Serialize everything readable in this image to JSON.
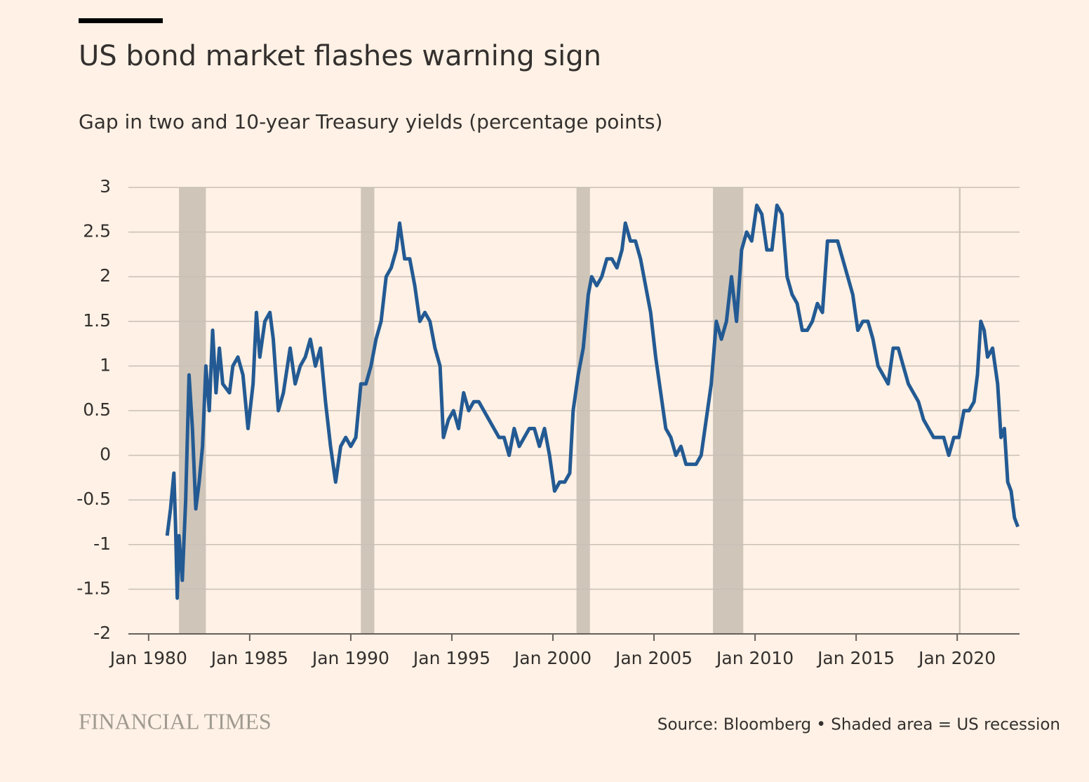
{
  "chart_data": {
    "type": "line",
    "title": "US bond market flashes warning sign",
    "subtitle": "Gap in two and 10-year Treasury yields (percentage points)",
    "brand": "FINANCIAL TIMES",
    "source": "Source: Bloomberg • Shaded area = US recession",
    "xlim": [
      "1979-01",
      "2023-02"
    ],
    "ylim": [
      -2,
      3
    ],
    "yticks": [
      -2,
      -1.5,
      -1,
      -0.5,
      0,
      0.5,
      1,
      1.5,
      2,
      2.5,
      3
    ],
    "xticks": [
      {
        "value": "1980-01",
        "label": "Jan 1980"
      },
      {
        "value": "1985-01",
        "label": "Jan 1985"
      },
      {
        "value": "1990-01",
        "label": "Jan 1990"
      },
      {
        "value": "1995-01",
        "label": "Jan 1995"
      },
      {
        "value": "2000-01",
        "label": "Jan 2000"
      },
      {
        "value": "2005-01",
        "label": "Jan 2005"
      },
      {
        "value": "2010-01",
        "label": "Jan 2010"
      },
      {
        "value": "2015-01",
        "label": "Jan 2015"
      },
      {
        "value": "2020-01",
        "label": "Jan 2020"
      }
    ],
    "grid": true,
    "recession_color": "#cfc5b9",
    "recessions": [
      {
        "start": "1981-07",
        "end": "1982-11"
      },
      {
        "start": "1990-07",
        "end": "1991-03"
      },
      {
        "start": "2001-03",
        "end": "2001-11"
      },
      {
        "start": "2007-12",
        "end": "2009-06"
      },
      {
        "start": "2020-02",
        "end": "2020-03"
      }
    ],
    "series": [
      {
        "color": "#235a93",
        "x": [
          "1980-12",
          "1981-02",
          "1981-04",
          "1981-05",
          "1981-06",
          "1981-07",
          "1981-09",
          "1981-11",
          "1982-01",
          "1982-03",
          "1982-05",
          "1982-07",
          "1982-09",
          "1982-11",
          "1983-01",
          "1983-03",
          "1983-05",
          "1983-07",
          "1983-09",
          "1984-01",
          "1984-03",
          "1984-06",
          "1984-09",
          "1984-12",
          "1985-03",
          "1985-05",
          "1985-07",
          "1985-10",
          "1986-01",
          "1986-03",
          "1986-06",
          "1986-09",
          "1987-01",
          "1987-04",
          "1987-07",
          "1987-10",
          "1988-01",
          "1988-04",
          "1988-07",
          "1988-10",
          "1989-01",
          "1989-04",
          "1989-07",
          "1989-10",
          "1990-01",
          "1990-04",
          "1990-07",
          "1990-10",
          "1991-01",
          "1991-04",
          "1991-07",
          "1991-10",
          "1992-01",
          "1992-04",
          "1992-06",
          "1992-09",
          "1992-12",
          "1993-03",
          "1993-06",
          "1993-09",
          "1993-12",
          "1994-03",
          "1994-06",
          "1994-08",
          "1994-11",
          "1995-02",
          "1995-05",
          "1995-08",
          "1995-11",
          "1996-02",
          "1996-05",
          "1996-08",
          "1996-11",
          "1997-02",
          "1997-05",
          "1997-08",
          "1997-11",
          "1998-02",
          "1998-05",
          "1998-08",
          "1998-11",
          "1999-02",
          "1999-05",
          "1999-08",
          "1999-11",
          "2000-02",
          "2000-05",
          "2000-08",
          "2000-11",
          "2001-01",
          "2001-04",
          "2001-07",
          "2001-10",
          "2001-12",
          "2002-03",
          "2002-06",
          "2002-09",
          "2002-12",
          "2003-03",
          "2003-06",
          "2003-08",
          "2003-11",
          "2004-02",
          "2004-05",
          "2004-08",
          "2004-11",
          "2005-02",
          "2005-05",
          "2005-08",
          "2005-11",
          "2006-02",
          "2006-05",
          "2006-08",
          "2006-11",
          "2007-02",
          "2007-05",
          "2007-08",
          "2007-11",
          "2008-02",
          "2008-05",
          "2008-08",
          "2008-11",
          "2009-02",
          "2009-05",
          "2009-08",
          "2009-11",
          "2010-02",
          "2010-05",
          "2010-08",
          "2010-11",
          "2011-02",
          "2011-05",
          "2011-08",
          "2011-11",
          "2012-02",
          "2012-05",
          "2012-08",
          "2012-11",
          "2013-02",
          "2013-05",
          "2013-08",
          "2013-11",
          "2014-02",
          "2014-05",
          "2014-08",
          "2014-11",
          "2015-02",
          "2015-05",
          "2015-08",
          "2015-11",
          "2016-02",
          "2016-05",
          "2016-08",
          "2016-11",
          "2017-02",
          "2017-05",
          "2017-08",
          "2017-11",
          "2018-02",
          "2018-05",
          "2018-08",
          "2018-11",
          "2019-02",
          "2019-05",
          "2019-08",
          "2019-11",
          "2020-02",
          "2020-05",
          "2020-08",
          "2020-11",
          "2021-01",
          "2021-03",
          "2021-05",
          "2021-07",
          "2021-10",
          "2022-01",
          "2022-03",
          "2022-05",
          "2022-07",
          "2022-09",
          "2022-11",
          "2023-01"
        ],
        "values": [
          -0.9,
          -0.6,
          -0.2,
          -0.8,
          -1.6,
          -0.9,
          -1.4,
          -0.5,
          0.9,
          0.3,
          -0.6,
          -0.3,
          0.1,
          1.0,
          0.5,
          1.4,
          0.7,
          1.2,
          0.8,
          0.7,
          1.0,
          1.1,
          0.9,
          0.3,
          0.8,
          1.6,
          1.1,
          1.5,
          1.6,
          1.3,
          0.5,
          0.7,
          1.2,
          0.8,
          1.0,
          1.1,
          1.3,
          1.0,
          1.2,
          0.6,
          0.1,
          -0.3,
          0.1,
          0.2,
          0.1,
          0.2,
          0.8,
          0.8,
          1.0,
          1.3,
          1.5,
          2.0,
          2.1,
          2.3,
          2.6,
          2.2,
          2.2,
          1.9,
          1.5,
          1.6,
          1.5,
          1.2,
          1.0,
          0.2,
          0.4,
          0.5,
          0.3,
          0.7,
          0.5,
          0.6,
          0.6,
          0.5,
          0.4,
          0.3,
          0.2,
          0.2,
          0.0,
          0.3,
          0.1,
          0.2,
          0.3,
          0.3,
          0.1,
          0.3,
          0.0,
          -0.4,
          -0.3,
          -0.3,
          -0.2,
          0.5,
          0.9,
          1.2,
          1.8,
          2.0,
          1.9,
          2.0,
          2.2,
          2.2,
          2.1,
          2.3,
          2.6,
          2.4,
          2.4,
          2.2,
          1.9,
          1.6,
          1.1,
          0.7,
          0.3,
          0.2,
          0.0,
          0.1,
          -0.1,
          -0.1,
          -0.1,
          0.0,
          0.4,
          0.8,
          1.5,
          1.3,
          1.5,
          2.0,
          1.5,
          2.3,
          2.5,
          2.4,
          2.8,
          2.7,
          2.3,
          2.3,
          2.8,
          2.7,
          2.0,
          1.8,
          1.7,
          1.4,
          1.4,
          1.5,
          1.7,
          1.6,
          2.4,
          2.4,
          2.4,
          2.2,
          2.0,
          1.8,
          1.4,
          1.5,
          1.5,
          1.3,
          1.0,
          0.9,
          0.8,
          1.2,
          1.2,
          1.0,
          0.8,
          0.7,
          0.6,
          0.4,
          0.3,
          0.2,
          0.2,
          0.2,
          0.0,
          0.2,
          0.2,
          0.5,
          0.5,
          0.6,
          0.9,
          1.5,
          1.4,
          1.1,
          1.2,
          0.8,
          0.2,
          0.3,
          -0.3,
          -0.4,
          -0.7,
          -0.8
        ]
      }
    ]
  }
}
